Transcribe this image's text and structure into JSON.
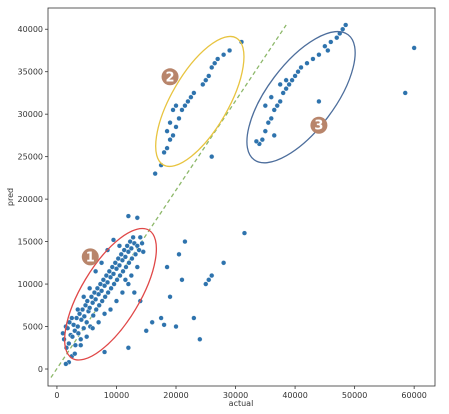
{
  "chart_data": {
    "type": "scatter",
    "xlabel": "actual",
    "ylabel": "pred",
    "xlim": [
      -1500,
      63500
    ],
    "ylim": [
      -2000,
      42500
    ],
    "xticks": [
      0,
      10000,
      20000,
      30000,
      40000,
      50000,
      60000
    ],
    "yticks": [
      0,
      5000,
      10000,
      15000,
      20000,
      25000,
      30000,
      35000,
      40000
    ],
    "xtick_labels": [
      "0",
      "10000",
      "20000",
      "30000",
      "40000",
      "50000",
      "60000"
    ],
    "ytick_labels": [
      "0",
      "5000",
      "10000",
      "15000",
      "20000",
      "25000",
      "30000",
      "35000",
      "40000"
    ],
    "grid": false,
    "point_color": "#2e73ad",
    "reference_line": {
      "x": [
        -1000,
        38500
      ],
      "y": [
        -1000,
        40500
      ],
      "color": "#8db86a",
      "style": "dashed"
    },
    "clusters": [
      {
        "label": "1",
        "center": [
          9000,
          8800
        ],
        "radii": [
          10500,
          4100
        ],
        "angle": 59,
        "color": "#e04848",
        "badge": [
          5600,
          13200
        ]
      },
      {
        "label": "2",
        "center": [
          24000,
          31500
        ],
        "radii": [
          10300,
          4000
        ],
        "angle": 60,
        "color": "#e8c440",
        "badge": [
          19000,
          34400
        ]
      },
      {
        "label": "3",
        "center": [
          41000,
          32000
        ],
        "radii": [
          11000,
          4700
        ],
        "angle": 53,
        "color": "#4d6e9c",
        "badge": [
          44000,
          28700
        ]
      }
    ],
    "badge_color": "#b8856b",
    "points": [
      [
        1000,
        4200
      ],
      [
        1200,
        3500
      ],
      [
        1500,
        5000
      ],
      [
        1600,
        2500
      ],
      [
        1800,
        4800
      ],
      [
        2000,
        3000
      ],
      [
        2100,
        5500
      ],
      [
        2300,
        4000
      ],
      [
        2500,
        1500
      ],
      [
        2600,
        3800
      ],
      [
        2800,
        5200
      ],
      [
        3000,
        4500
      ],
      [
        3100,
        2800
      ],
      [
        3300,
        6000
      ],
      [
        3500,
        5000
      ],
      [
        3600,
        4200
      ],
      [
        3800,
        6500
      ],
      [
        4000,
        3500
      ],
      [
        4100,
        5800
      ],
      [
        4300,
        7000
      ],
      [
        4500,
        4800
      ],
      [
        4600,
        6200
      ],
      [
        4800,
        7500
      ],
      [
        5000,
        5500
      ],
      [
        5100,
        8000
      ],
      [
        5300,
        6800
      ],
      [
        5500,
        7200
      ],
      [
        5600,
        5000
      ],
      [
        5800,
        8500
      ],
      [
        6000,
        7800
      ],
      [
        6100,
        6300
      ],
      [
        6300,
        9000
      ],
      [
        6500,
        8200
      ],
      [
        6600,
        7000
      ],
      [
        6800,
        9500
      ],
      [
        7000,
        8800
      ],
      [
        7100,
        7500
      ],
      [
        7300,
        10000
      ],
      [
        7500,
        9200
      ],
      [
        7600,
        8000
      ],
      [
        7800,
        10500
      ],
      [
        8000,
        9800
      ],
      [
        8100,
        8500
      ],
      [
        8300,
        11000
      ],
      [
        8500,
        10200
      ],
      [
        8600,
        9000
      ],
      [
        8800,
        11500
      ],
      [
        9000,
        10800
      ],
      [
        9100,
        9500
      ],
      [
        9300,
        12000
      ],
      [
        9500,
        11200
      ],
      [
        9600,
        10000
      ],
      [
        9800,
        12500
      ],
      [
        10000,
        11800
      ],
      [
        10100,
        10500
      ],
      [
        10300,
        13000
      ],
      [
        10500,
        12200
      ],
      [
        10600,
        11000
      ],
      [
        10800,
        13500
      ],
      [
        11000,
        12800
      ],
      [
        11100,
        11500
      ],
      [
        11300,
        14000
      ],
      [
        11500,
        13200
      ],
      [
        11600,
        12000
      ],
      [
        11800,
        14500
      ],
      [
        12000,
        13800
      ],
      [
        12100,
        12500
      ],
      [
        12300,
        15000
      ],
      [
        12500,
        14200
      ],
      [
        12600,
        13000
      ],
      [
        12800,
        15500
      ],
      [
        13000,
        14800
      ],
      [
        13200,
        13500
      ],
      [
        13500,
        14500
      ],
      [
        13800,
        14000
      ],
      [
        14000,
        15500
      ],
      [
        14300,
        14800
      ],
      [
        14500,
        13800
      ],
      [
        6500,
        11500
      ],
      [
        5500,
        9500
      ],
      [
        4500,
        8500
      ],
      [
        7500,
        12500
      ],
      [
        8500,
        14000
      ],
      [
        9500,
        15200
      ],
      [
        10500,
        14500
      ],
      [
        11500,
        10500
      ],
      [
        12500,
        11000
      ],
      [
        13500,
        12000
      ],
      [
        3500,
        7000
      ],
      [
        2500,
        6000
      ],
      [
        8000,
        6500
      ],
      [
        9000,
        7000
      ],
      [
        10000,
        8000
      ],
      [
        11000,
        9000
      ],
      [
        12000,
        10000
      ],
      [
        13000,
        9000
      ],
      [
        14000,
        8000
      ],
      [
        7000,
        5500
      ],
      [
        6000,
        4800
      ],
      [
        5000,
        3800
      ],
      [
        4000,
        2800
      ],
      [
        3000,
        1800
      ],
      [
        2000,
        800
      ],
      [
        1500,
        600
      ],
      [
        12000,
        18000
      ],
      [
        13500,
        17800
      ],
      [
        16000,
        5500
      ],
      [
        18000,
        5200
      ],
      [
        15000,
        4500
      ],
      [
        17500,
        6000
      ],
      [
        20000,
        5000
      ],
      [
        19000,
        8500
      ],
      [
        20500,
        13500
      ],
      [
        21000,
        10500
      ],
      [
        21500,
        15000
      ],
      [
        18500,
        12000
      ],
      [
        23000,
        6000
      ],
      [
        24000,
        3500
      ],
      [
        25000,
        10000
      ],
      [
        25500,
        10500
      ],
      [
        26000,
        11000
      ],
      [
        28000,
        12500
      ],
      [
        31500,
        16000
      ],
      [
        12000,
        2500
      ],
      [
        8000,
        2000
      ],
      [
        16500,
        23000
      ],
      [
        17500,
        24000
      ],
      [
        18000,
        25500
      ],
      [
        18500,
        26000
      ],
      [
        19000,
        27000
      ],
      [
        19500,
        27500
      ],
      [
        20000,
        28500
      ],
      [
        20500,
        29500
      ],
      [
        21000,
        30500
      ],
      [
        21500,
        31000
      ],
      [
        22000,
        31500
      ],
      [
        22500,
        32000
      ],
      [
        23000,
        32500
      ],
      [
        19500,
        30500
      ],
      [
        19000,
        29000
      ],
      [
        18500,
        28000
      ],
      [
        20000,
        31000
      ],
      [
        24500,
        33500
      ],
      [
        25000,
        34000
      ],
      [
        25500,
        34500
      ],
      [
        26000,
        35500
      ],
      [
        26500,
        36000
      ],
      [
        27000,
        36500
      ],
      [
        28000,
        37000
      ],
      [
        29000,
        37500
      ],
      [
        31000,
        38500
      ],
      [
        26000,
        25000
      ],
      [
        34000,
        26500
      ],
      [
        34500,
        27000
      ],
      [
        35000,
        28000
      ],
      [
        35500,
        29000
      ],
      [
        36000,
        29500
      ],
      [
        36500,
        30500
      ],
      [
        37000,
        31000
      ],
      [
        37500,
        31500
      ],
      [
        38000,
        32500
      ],
      [
        38500,
        33000
      ],
      [
        39000,
        33500
      ],
      [
        39500,
        34000
      ],
      [
        40000,
        34500
      ],
      [
        40500,
        35000
      ],
      [
        41000,
        35500
      ],
      [
        42000,
        36000
      ],
      [
        43000,
        36500
      ],
      [
        44000,
        37000
      ],
      [
        45000,
        38000
      ],
      [
        46000,
        38500
      ],
      [
        47000,
        39000
      ],
      [
        47500,
        39500
      ],
      [
        48000,
        40000
      ],
      [
        48500,
        40500
      ],
      [
        35000,
        31000
      ],
      [
        36000,
        32000
      ],
      [
        37500,
        33500
      ],
      [
        38500,
        34000
      ],
      [
        44000,
        31500
      ],
      [
        45500,
        37500
      ],
      [
        58500,
        32500
      ],
      [
        60000,
        37800
      ],
      [
        33500,
        26800
      ],
      [
        36500,
        27500
      ]
    ]
  }
}
